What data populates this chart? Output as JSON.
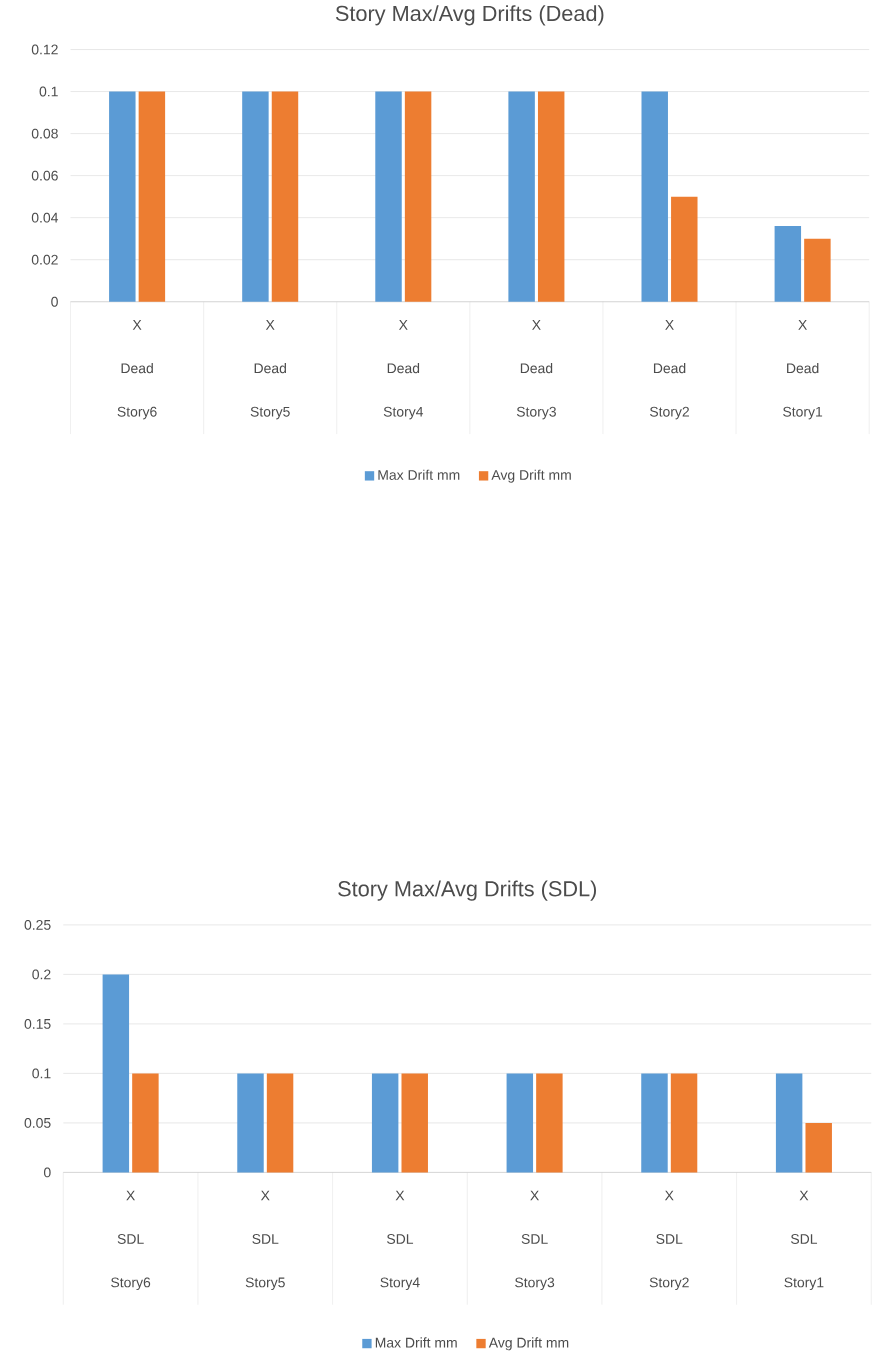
{
  "chart_data": [
    {
      "type": "bar",
      "title": "Story Max/Avg Drifts (Dead)",
      "categories": [
        "X Dead Story6",
        "X Dead Story5",
        "X Dead Story4",
        "X Dead Story3",
        "X Dead Story2",
        "X Dead Story1"
      ],
      "series": [
        {
          "name": "Max Drift mm",
          "color": "#5b9bd5",
          "values": [
            0.1,
            0.1,
            0.1,
            0.1,
            0.1,
            0.036
          ]
        },
        {
          "name": "Avg Drift mm",
          "color": "#ed7d31",
          "values": [
            0.1,
            0.1,
            0.1,
            0.1,
            0.05,
            0.03
          ]
        }
      ],
      "ylim": [
        0,
        0.12
      ],
      "yticks": [
        0,
        0.02,
        0.04,
        0.06,
        0.08,
        0.1,
        0.12
      ],
      "grid": "y",
      "legend": "bottom"
    },
    {
      "type": "bar",
      "title": "Story Max/Avg Drifts (SDL)",
      "categories": [
        "X SDL Story6",
        "X SDL Story5",
        "X SDL Story4",
        "X SDL Story3",
        "X SDL Story2",
        "X SDL Story1"
      ],
      "series": [
        {
          "name": "Max Drift mm",
          "color": "#5b9bd5",
          "values": [
            0.2,
            0.1,
            0.1,
            0.1,
            0.1,
            0.1
          ]
        },
        {
          "name": "Avg Drift mm",
          "color": "#ed7d31",
          "values": [
            0.1,
            0.1,
            0.1,
            0.1,
            0.1,
            0.05
          ]
        }
      ],
      "ylim": [
        0,
        0.25
      ],
      "yticks": [
        0,
        0.05,
        0.1,
        0.15,
        0.2,
        0.25
      ],
      "grid": "y",
      "legend": "bottom"
    }
  ]
}
